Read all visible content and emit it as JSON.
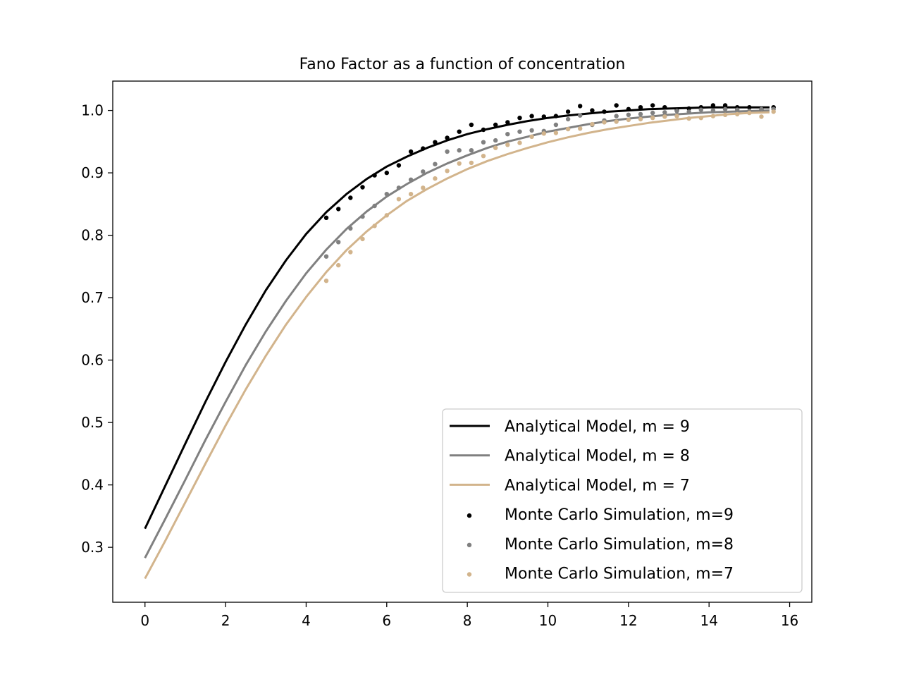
{
  "chart_data": {
    "type": "line",
    "title": "Fano Factor as a function of concentration",
    "xlabel": "",
    "ylabel": "",
    "xlim": [
      -0.8,
      16.55
    ],
    "ylim": [
      0.212,
      1.047
    ],
    "xticks": [
      0,
      2,
      4,
      6,
      8,
      10,
      12,
      14,
      16
    ],
    "xtick_labels": [
      "0",
      "2",
      "4",
      "6",
      "8",
      "10",
      "12",
      "14",
      "16"
    ],
    "yticks": [
      0.3,
      0.4,
      0.5,
      0.6,
      0.7,
      0.8,
      0.9,
      1.0
    ],
    "ytick_labels": [
      "0.3",
      "0.4",
      "0.5",
      "0.6",
      "0.7",
      "0.8",
      "0.9",
      "1.0"
    ],
    "grid": false,
    "legend_position": "lower-right",
    "series": [
      {
        "name": "Analytical Model, m = 9",
        "kind": "line",
        "color": "#000000",
        "x": [
          0,
          0.5,
          1,
          1.5,
          2,
          2.5,
          3,
          3.5,
          4,
          4.5,
          5,
          5.5,
          6,
          6.5,
          7,
          7.5,
          8,
          8.5,
          9,
          9.5,
          10,
          10.5,
          11,
          11.5,
          12,
          12.5,
          13,
          13.5,
          14,
          14.5,
          15,
          15.5
        ],
        "y": [
          0.33,
          0.398,
          0.466,
          0.533,
          0.597,
          0.657,
          0.712,
          0.76,
          0.802,
          0.837,
          0.866,
          0.89,
          0.91,
          0.926,
          0.94,
          0.952,
          0.962,
          0.97,
          0.977,
          0.983,
          0.988,
          0.992,
          0.995,
          0.998,
          1.0,
          1.002,
          1.003,
          1.004,
          1.005,
          1.005,
          1.005,
          1.005
        ]
      },
      {
        "name": "Analytical Model, m = 8",
        "kind": "line",
        "color": "#808080",
        "x": [
          0,
          0.5,
          1,
          1.5,
          2,
          2.5,
          3,
          3.5,
          4,
          4.5,
          5,
          5.5,
          6,
          6.5,
          7,
          7.5,
          8,
          8.5,
          9,
          9.5,
          10,
          10.5,
          11,
          11.5,
          12,
          12.5,
          13,
          13.5,
          14,
          14.5,
          15,
          15.5
        ],
        "y": [
          0.283,
          0.345,
          0.408,
          0.472,
          0.533,
          0.592,
          0.646,
          0.695,
          0.739,
          0.777,
          0.81,
          0.838,
          0.862,
          0.882,
          0.9,
          0.915,
          0.928,
          0.94,
          0.95,
          0.958,
          0.966,
          0.972,
          0.978,
          0.983,
          0.987,
          0.99,
          0.993,
          0.995,
          0.997,
          0.998,
          0.999,
          1.0
        ]
      },
      {
        "name": "Analytical Model, m = 7",
        "kind": "line",
        "color": "#d2b48c",
        "x": [
          0,
          0.5,
          1,
          1.5,
          2,
          2.5,
          3,
          3.5,
          4,
          4.5,
          5,
          5.5,
          6,
          6.5,
          7,
          7.5,
          8,
          8.5,
          9,
          9.5,
          10,
          10.5,
          11,
          11.5,
          12,
          12.5,
          13,
          13.5,
          14,
          14.5,
          15,
          15.5
        ],
        "y": [
          0.25,
          0.31,
          0.372,
          0.434,
          0.495,
          0.553,
          0.607,
          0.657,
          0.701,
          0.741,
          0.776,
          0.806,
          0.832,
          0.855,
          0.874,
          0.891,
          0.906,
          0.919,
          0.93,
          0.94,
          0.949,
          0.957,
          0.964,
          0.97,
          0.975,
          0.98,
          0.984,
          0.988,
          0.991,
          0.994,
          0.996,
          0.997
        ]
      },
      {
        "name": "Monte Carlo Simulation, m=9",
        "kind": "scatter",
        "color": "#000000",
        "x": [
          4.5,
          4.8,
          5.1,
          5.4,
          5.7,
          6.0,
          6.3,
          6.6,
          6.9,
          7.2,
          7.5,
          7.8,
          8.1,
          8.4,
          8.7,
          9.0,
          9.3,
          9.6,
          9.9,
          10.2,
          10.5,
          10.8,
          11.1,
          11.4,
          11.7,
          12.0,
          12.3,
          12.6,
          12.9,
          13.2,
          13.5,
          13.8,
          14.1,
          14.4,
          14.7,
          15.0,
          15.3,
          15.6
        ],
        "y": [
          0.828,
          0.842,
          0.86,
          0.877,
          0.896,
          0.9,
          0.912,
          0.934,
          0.939,
          0.949,
          0.956,
          0.966,
          0.977,
          0.969,
          0.977,
          0.981,
          0.988,
          0.991,
          0.99,
          0.991,
          0.998,
          1.007,
          1.0,
          0.998,
          1.008,
          1.002,
          1.005,
          1.008,
          1.005,
          1.0,
          1.003,
          1.005,
          1.008,
          1.008,
          1.005,
          1.005,
          1.002,
          1.005
        ]
      },
      {
        "name": "Monte Carlo Simulation, m=8",
        "kind": "scatter",
        "color": "#808080",
        "x": [
          4.5,
          4.8,
          5.1,
          5.4,
          5.7,
          6.0,
          6.3,
          6.6,
          6.9,
          7.2,
          7.5,
          7.8,
          8.1,
          8.4,
          8.7,
          9.0,
          9.3,
          9.6,
          9.9,
          10.2,
          10.5,
          10.8,
          11.1,
          11.4,
          11.7,
          12.0,
          12.3,
          12.6,
          12.9,
          13.2,
          13.5,
          13.8,
          14.1,
          14.4,
          14.7,
          15.0,
          15.3,
          15.6
        ],
        "y": [
          0.766,
          0.789,
          0.811,
          0.83,
          0.847,
          0.866,
          0.876,
          0.889,
          0.902,
          0.914,
          0.934,
          0.936,
          0.936,
          0.949,
          0.952,
          0.962,
          0.966,
          0.968,
          0.967,
          0.977,
          0.986,
          0.992,
          0.977,
          0.984,
          0.991,
          0.993,
          0.994,
          0.996,
          0.997,
          0.999,
          0.998,
          1.001,
          1.0,
          1.002,
          1.001,
          0.999,
          1.002,
          1.002
        ]
      },
      {
        "name": "Monte Carlo Simulation, m=7",
        "kind": "scatter",
        "color": "#d2b48c",
        "x": [
          4.5,
          4.8,
          5.1,
          5.4,
          5.7,
          6.0,
          6.3,
          6.6,
          6.9,
          7.2,
          7.5,
          7.8,
          8.1,
          8.4,
          8.7,
          9.0,
          9.3,
          9.6,
          9.9,
          10.2,
          10.5,
          10.8,
          11.1,
          11.4,
          11.7,
          12.0,
          12.3,
          12.6,
          12.9,
          13.2,
          13.5,
          13.8,
          14.1,
          14.4,
          14.7,
          15.0,
          15.3,
          15.6
        ],
        "y": [
          0.727,
          0.752,
          0.773,
          0.794,
          0.815,
          0.832,
          0.858,
          0.866,
          0.876,
          0.891,
          0.903,
          0.915,
          0.916,
          0.927,
          0.94,
          0.945,
          0.948,
          0.958,
          0.963,
          0.964,
          0.97,
          0.971,
          0.978,
          0.981,
          0.982,
          0.985,
          0.986,
          0.988,
          0.99,
          0.991,
          0.987,
          0.988,
          0.991,
          0.993,
          0.994,
          0.996,
          0.99,
          0.998
        ]
      }
    ]
  }
}
